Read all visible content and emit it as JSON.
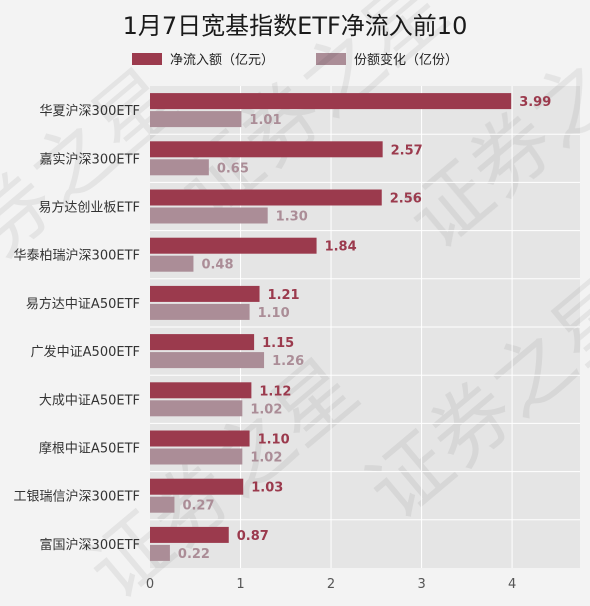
{
  "colors": {
    "net_inflow": "#9b3a4d",
    "share_change": "#ab8d97",
    "plot_bg": "#e5e5e5",
    "grid": "#ffffff"
  },
  "chart_data": {
    "type": "bar",
    "orientation": "horizontal",
    "title": "1月7日宽基指数ETF净流入前10",
    "categories": [
      "华夏沪深300ETF",
      "嘉实沪深300ETF",
      "易方达创业板ETF",
      "华泰柏瑞沪深300ETF",
      "易方达中证A50ETF",
      "广发中证A500ETF",
      "大成中证A50ETF",
      "摩根中证A50ETF",
      "工银瑞信沪深300ETF",
      "富国沪深300ETF"
    ],
    "series": [
      {
        "name": "净流入额（亿元）",
        "values": [
          3.99,
          2.57,
          2.56,
          1.84,
          1.21,
          1.15,
          1.12,
          1.1,
          1.03,
          0.87
        ],
        "labels": [
          "3.99",
          "2.57",
          "2.56",
          "1.84",
          "1.21",
          "1.15",
          "1.12",
          "1.10",
          "1.03",
          "0.87"
        ]
      },
      {
        "name": "份额变化（亿份）",
        "values": [
          1.01,
          0.65,
          1.3,
          0.48,
          1.1,
          1.26,
          1.02,
          1.02,
          0.27,
          0.22
        ],
        "labels": [
          "1.01",
          "0.65",
          "1.30",
          "0.48",
          "1.10",
          "1.26",
          "1.02",
          "1.02",
          "0.27",
          "0.22"
        ]
      }
    ],
    "xlim": [
      0,
      4.75
    ],
    "xticks": [
      "0",
      "1",
      "2",
      "3",
      "4"
    ],
    "grid": true,
    "legend": "top-center",
    "watermark": "证券之星"
  }
}
